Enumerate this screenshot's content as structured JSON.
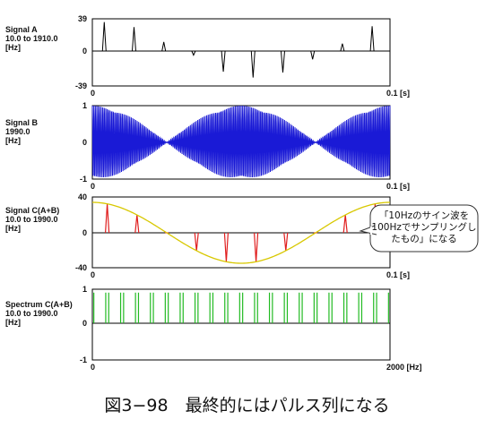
{
  "figure": {
    "caption": "図3−98　最終的にはパルス列になる"
  },
  "chart_data": [
    {
      "type": "line",
      "name": "Signal A",
      "label_lines": [
        "Signal A",
        "10.0 to 1910.0",
        "[Hz]"
      ],
      "ylim": [
        -39,
        39
      ],
      "y_ticks": [
        "39",
        "0",
        "-39"
      ],
      "xlim": [
        0,
        0.1
      ],
      "x_ticks": [
        "0",
        "0.1 [s]"
      ],
      "color": "#000000",
      "description_values": {
        "pulse_positions_s": [
          0.004,
          0.014,
          0.024,
          0.034,
          0.044,
          0.054,
          0.064,
          0.074,
          0.084,
          0.094
        ],
        "pulse_heights": [
          35,
          29,
          11,
          -5,
          -25,
          -32,
          -26,
          -10,
          9,
          30
        ]
      }
    },
    {
      "type": "line",
      "name": "Signal B",
      "label_lines": [
        "Signal B",
        "1990.0",
        "[Hz]"
      ],
      "ylim": [
        -1,
        1
      ],
      "y_ticks": [
        "1",
        "0",
        "-1"
      ],
      "xlim": [
        0,
        0.1
      ],
      "x_ticks": [
        "0",
        "0.1 [s]"
      ],
      "color": "#1a1ad6",
      "description_values": {
        "carrier_hz": 1990,
        "envelope_hz": 10
      }
    },
    {
      "type": "line",
      "name": "Signal C(A+B)",
      "label_lines": [
        "Signal C(A+B)",
        "10.0 to 1990.0",
        "[Hz]"
      ],
      "ylim": [
        -40,
        40
      ],
      "y_ticks": [
        "40",
        "0",
        "-40"
      ],
      "xlim": [
        0,
        0.1
      ],
      "x_ticks": [
        "0",
        "0.1 [s]"
      ],
      "color": "#e01e1e",
      "envelope_color": "#d8c800",
      "description_values": {
        "sine_hz": 10,
        "sine_amplitude": 34,
        "sample_rate_hz": 100
      },
      "callout": [
        "「10Hzのサイン波を",
        "100Hzでサンプリングし",
        "たもの」になる"
      ]
    },
    {
      "type": "bar",
      "name": "Spectrum C(A+B)",
      "label_lines": [
        "Spectrum C(A+B)",
        "10.0 to 1990.0",
        "[Hz]"
      ],
      "ylim": [
        -1,
        1
      ],
      "y_ticks": [
        "1",
        "0",
        "-1"
      ],
      "xlim": [
        0,
        2000
      ],
      "x_ticks": [
        "0",
        "2000 [Hz]"
      ],
      "color": "#22bb22",
      "values": {
        "frequencies_hz": [
          10,
          90,
          110,
          190,
          210,
          290,
          310,
          390,
          410,
          490,
          510,
          590,
          610,
          690,
          710,
          790,
          810,
          890,
          910,
          990,
          1010,
          1090,
          1110,
          1190,
          1210,
          1290,
          1310,
          1390,
          1410,
          1490,
          1510,
          1590,
          1610,
          1690,
          1710,
          1790,
          1810,
          1890,
          1910,
          1990
        ],
        "magnitude": 0.9
      }
    }
  ]
}
